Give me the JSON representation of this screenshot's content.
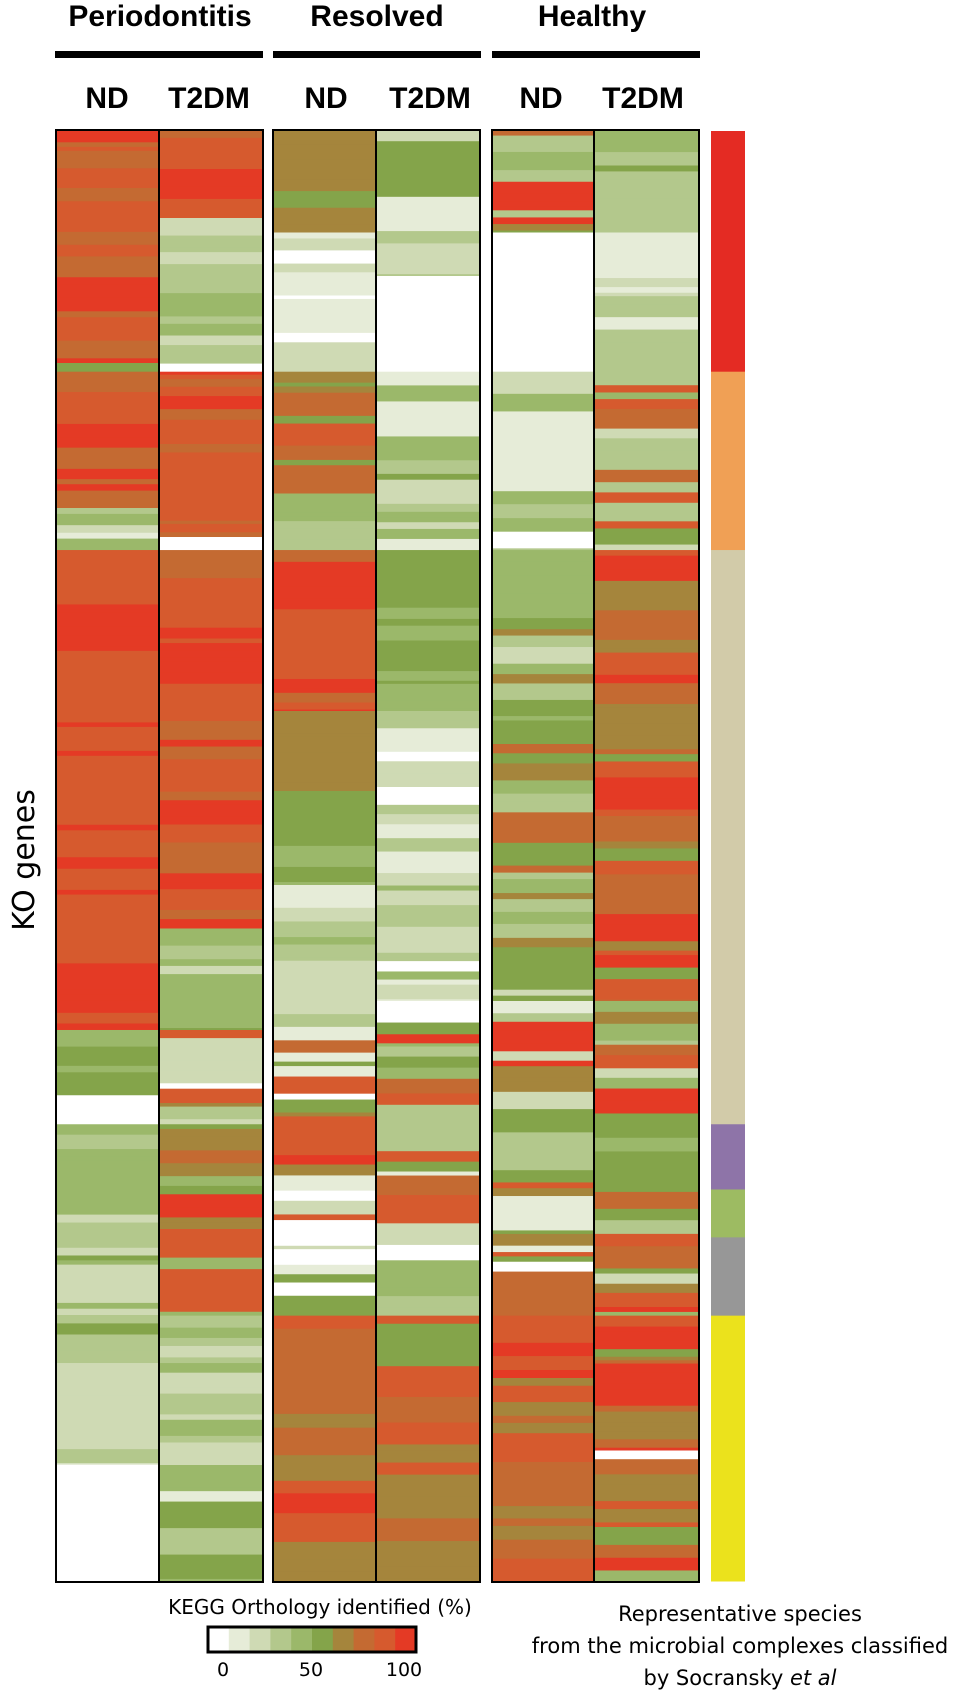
{
  "chart_data": {
    "type": "heatmap",
    "title": "",
    "ylabel": "KO genes",
    "groups": [
      {
        "name": "Periodontitis",
        "columns": [
          "ND",
          "T2DM"
        ]
      },
      {
        "name": "Resolved",
        "columns": [
          "ND",
          "T2DM"
        ]
      },
      {
        "name": "Healthy",
        "columns": [
          "ND",
          "T2DM"
        ]
      }
    ],
    "colorbar": {
      "title": "KEGG Orthology identified (%)",
      "ticks": [
        0,
        50,
        100
      ],
      "range": [
        0,
        100
      ],
      "colors": [
        "#ffffff",
        "#e6ecd8",
        "#cfdab4",
        "#b3c88c",
        "#9bb86a",
        "#84a44a",
        "#a5853c",
        "#c46a32",
        "#d65a2e",
        "#e43a25"
      ]
    },
    "complexes": {
      "description_lines": [
        "Representative species",
        "from the microbial complexes classified",
        "by Socransky et al"
      ],
      "description_prefix": "by Socransky ",
      "description_italic": "et al",
      "segments": [
        {
          "color": "#e42b23",
          "gene_range": [
            0,
            0.166
          ]
        },
        {
          "color": "#f0a055",
          "gene_range": [
            0.166,
            0.289
          ]
        },
        {
          "color": "#d2cba9",
          "gene_range": [
            0.289,
            0.685
          ]
        },
        {
          "color": "#8e74a8",
          "gene_range": [
            0.685,
            0.73
          ]
        },
        {
          "color": "#9dbb62",
          "gene_range": [
            0.73,
            0.763
          ]
        },
        {
          "color": "#979797",
          "gene_range": [
            0.763,
            0.817
          ]
        },
        {
          "color": "#ebe21c",
          "gene_range": [
            0.817,
            1.0
          ]
        }
      ]
    },
    "columns_profile": [
      {
        "group": "Periodontitis",
        "condition": "ND",
        "segments": [
          {
            "range": [
              0,
              0.16
            ],
            "level": [
              75,
              100
            ]
          },
          {
            "range": [
              0.16,
              0.166
            ],
            "level": [
              55,
              65
            ]
          },
          {
            "range": [
              0.166,
              0.26
            ],
            "level": [
              75,
              100
            ]
          },
          {
            "range": [
              0.26,
              0.289
            ],
            "level": [
              10,
              55
            ]
          },
          {
            "range": [
              0.289,
              0.62
            ],
            "level": [
              85,
              100
            ]
          },
          {
            "range": [
              0.62,
              0.665
            ],
            "level": [
              40,
              60
            ]
          },
          {
            "range": [
              0.665,
              0.685
            ],
            "level": [
              0,
              10
            ]
          },
          {
            "range": [
              0.685,
              0.83
            ],
            "level": [
              15,
              55
            ]
          },
          {
            "range": [
              0.83,
              0.92
            ],
            "level": [
              5,
              35
            ]
          },
          {
            "range": [
              0.92,
              1.0
            ],
            "level": [
              0,
              1
            ]
          }
        ]
      },
      {
        "group": "Periodontitis",
        "condition": "T2DM",
        "segments": [
          {
            "range": [
              0,
              0.06
            ],
            "level": [
              75,
              100
            ]
          },
          {
            "range": [
              0.06,
              0.16
            ],
            "level": [
              15,
              55
            ]
          },
          {
            "range": [
              0.166,
              0.28
            ],
            "level": [
              70,
              100
            ]
          },
          {
            "range": [
              0.28,
              0.289
            ],
            "level": [
              0,
              2
            ]
          },
          {
            "range": [
              0.289,
              0.55
            ],
            "level": [
              75,
              100
            ]
          },
          {
            "range": [
              0.55,
              0.62
            ],
            "level": [
              25,
              55
            ]
          },
          {
            "range": [
              0.62,
              0.685
            ],
            "level": [
              0,
              100
            ]
          },
          {
            "range": [
              0.685,
              0.817
            ],
            "level": [
              40,
              100
            ]
          },
          {
            "range": [
              0.817,
              0.92
            ],
            "level": [
              20,
              60
            ]
          },
          {
            "range": [
              0.92,
              1.0
            ],
            "level": [
              15,
              55
            ]
          }
        ]
      },
      {
        "group": "Resolved",
        "condition": "ND",
        "segments": [
          {
            "range": [
              0,
              0.07
            ],
            "level": [
              55,
              70
            ]
          },
          {
            "range": [
              0.07,
              0.166
            ],
            "level": [
              0,
              30
            ]
          },
          {
            "range": [
              0.166,
              0.25
            ],
            "level": [
              55,
              95
            ]
          },
          {
            "range": [
              0.25,
              0.289
            ],
            "level": [
              15,
              55
            ]
          },
          {
            "range": [
              0.289,
              0.4
            ],
            "level": [
              75,
              100
            ]
          },
          {
            "range": [
              0.4,
              0.46
            ],
            "level": [
              60,
              68
            ]
          },
          {
            "range": [
              0.46,
              0.52
            ],
            "level": [
              45,
              55
            ]
          },
          {
            "range": [
              0.52,
              0.6
            ],
            "level": [
              15,
              45
            ]
          },
          {
            "range": [
              0.6,
              0.817
            ],
            "level": [
              0,
              100
            ]
          },
          {
            "range": [
              0.817,
              1.0
            ],
            "level": [
              60,
              100
            ]
          }
        ]
      },
      {
        "group": "Resolved",
        "condition": "T2DM",
        "segments": [
          {
            "range": [
              0,
              0.1
            ],
            "level": [
              0,
              55
            ]
          },
          {
            "range": [
              0.1,
              0.166
            ],
            "level": [
              0,
              5
            ]
          },
          {
            "range": [
              0.166,
              0.289
            ],
            "level": [
              10,
              55
            ]
          },
          {
            "range": [
              0.289,
              0.4
            ],
            "level": [
              40,
              60
            ]
          },
          {
            "range": [
              0.4,
              0.6
            ],
            "level": [
              0,
              45
            ]
          },
          {
            "range": [
              0.6,
              0.817
            ],
            "level": [
              0,
              100
            ]
          },
          {
            "range": [
              0.817,
              1.0
            ],
            "level": [
              55,
              100
            ]
          }
        ]
      },
      {
        "group": "Healthy",
        "condition": "ND",
        "segments": [
          {
            "range": [
              0,
              0.07
            ],
            "level": [
              25,
              100
            ]
          },
          {
            "range": [
              0.07,
              0.166
            ],
            "level": [
              0,
              5
            ]
          },
          {
            "range": [
              0.166,
              0.289
            ],
            "level": [
              5,
              50
            ]
          },
          {
            "range": [
              0.289,
              0.6
            ],
            "level": [
              25,
              75
            ]
          },
          {
            "range": [
              0.6,
              0.817
            ],
            "level": [
              0,
              100
            ]
          },
          {
            "range": [
              0.817,
              0.86
            ],
            "level": [
              90,
              100
            ]
          },
          {
            "range": [
              0.86,
              1.0
            ],
            "level": [
              60,
              95
            ]
          }
        ]
      },
      {
        "group": "Healthy",
        "condition": "T2DM",
        "segments": [
          {
            "range": [
              0,
              0.07
            ],
            "level": [
              30,
              70
            ]
          },
          {
            "range": [
              0.07,
              0.166
            ],
            "level": [
              5,
              35
            ]
          },
          {
            "range": [
              0.166,
              0.289
            ],
            "level": [
              25,
              100
            ]
          },
          {
            "range": [
              0.289,
              0.6
            ],
            "level": [
              60,
              100
            ]
          },
          {
            "range": [
              0.6,
              0.817
            ],
            "level": [
              20,
              100
            ]
          },
          {
            "range": [
              0.817,
              0.91
            ],
            "level": [
              55,
              100
            ]
          },
          {
            "range": [
              0.91,
              0.916
            ],
            "level": [
              0,
              1
            ]
          },
          {
            "range": [
              0.916,
              1.0
            ],
            "level": [
              40,
              100
            ]
          }
        ]
      }
    ]
  }
}
